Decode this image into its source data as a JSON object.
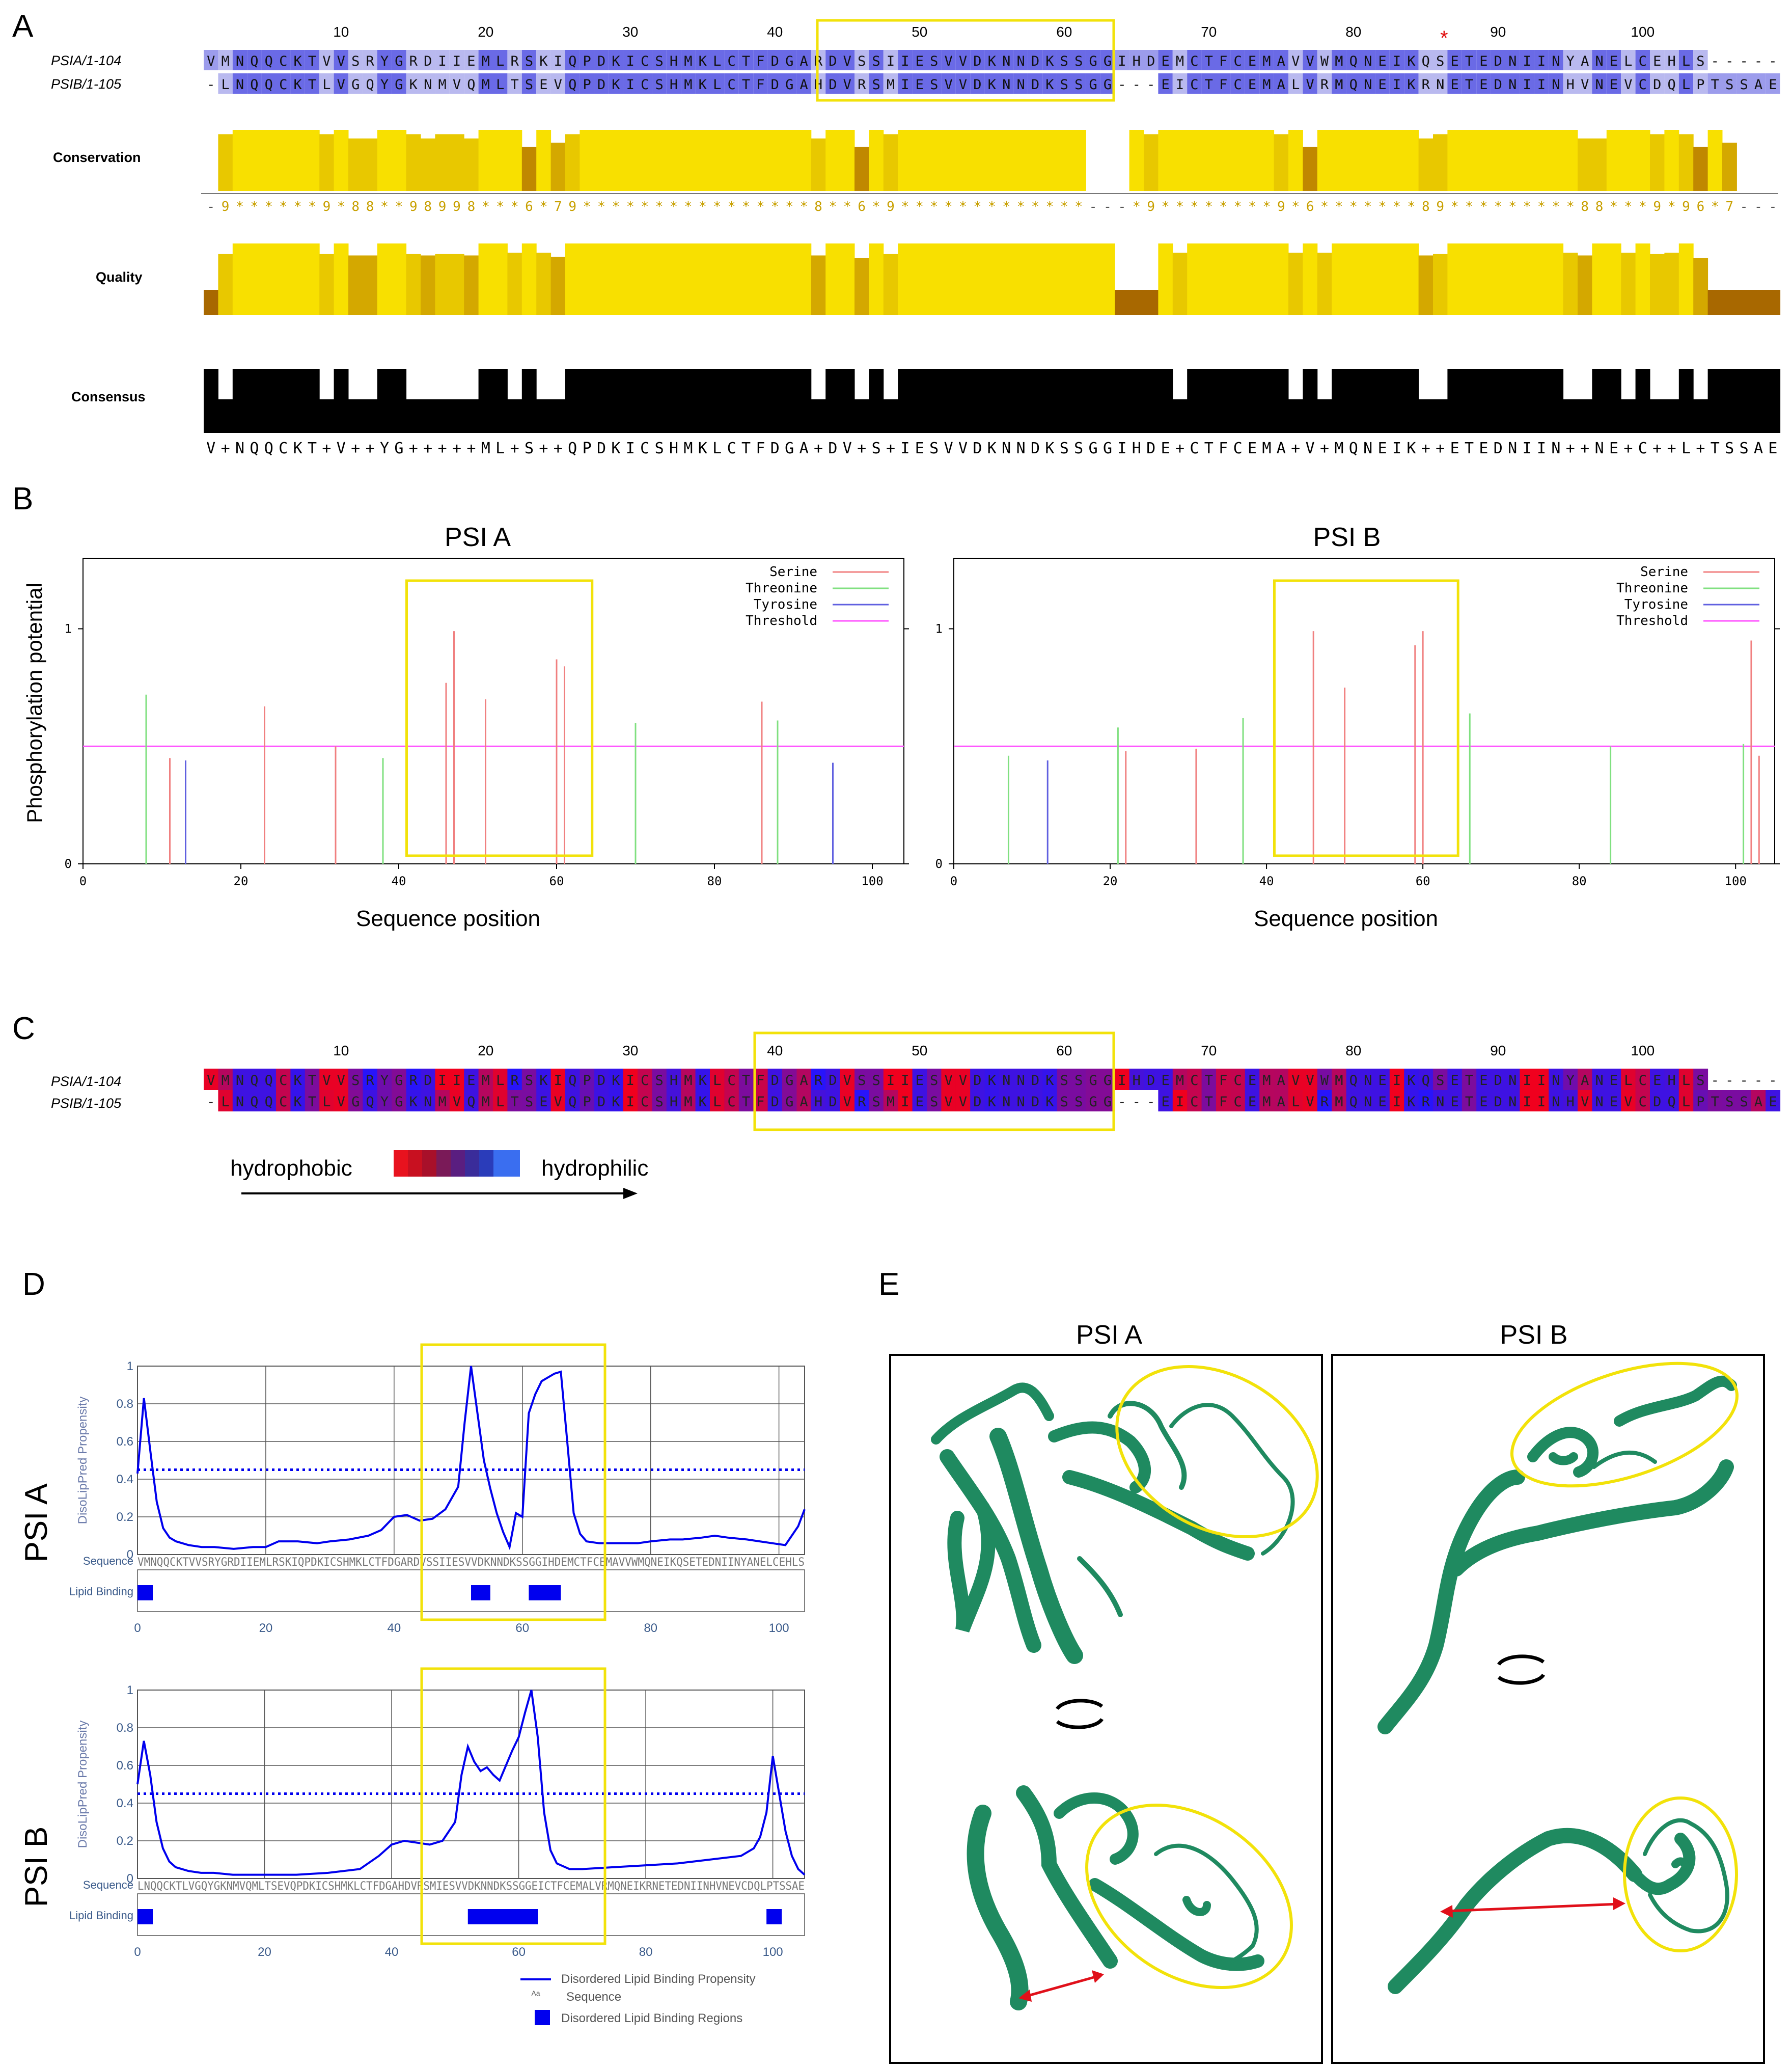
{
  "figure": {
    "panel_labels": {
      "a": "A",
      "b": "B",
      "c": "C",
      "d": "D",
      "e": "E"
    },
    "colors": {
      "yellow_box": "#f2e20a",
      "serine": "#f08080",
      "threonine": "#80e080",
      "tyrosine": "#6060e0",
      "threshold": "#ff55ff",
      "protein": "#1f8a60",
      "lipid": "#0000ee",
      "arrow_red": "#e0101a"
    }
  },
  "panel_a": {
    "ruler": [
      "10",
      "20",
      "30",
      "40",
      "50",
      "60",
      "70",
      "80",
      "90",
      "100"
    ],
    "asterisk": "*",
    "seq_names": [
      "PSIA/1-104",
      "PSIB/1-105"
    ],
    "seq_a": "VMNQQCKTVVSRYGRDIIEMLRSKIQPDKICSHMKLCTFDGARDVSSIIESVVDKNNDKSSGGIHDEMCTFCEMAVVWMQNEIKQSETEDNIINYANELCEHLS-----",
    "seq_b": "-LNQQCKTLVGQYGKNMVQMLTSEVQPDKICSHMKLCTFDGAHDVRSMIESVVDKNNDKSSGG---EICTFCEMALVRMQNEIKRNETEDNIINHVNEVCDQLPTSSAE",
    "track_labels": {
      "conservation": "Conservation",
      "quality": "Quality",
      "consensus": "Consensus"
    },
    "conservation_string": "-9******9*88**98998***6*79****************8**6*9*************---*9********9*6*******89*********88***9*96*7---",
    "consensus_string": "V+NQQCKT+V++YG+++++ML+S++QPDKICSHMKLCTFDGA+DV+S+IESVVDKNNDKSSGGIHDE+CTFCEMA+V+MQNEIK++ETEDNIIN++NE+C++L+TSSAE"
  },
  "panel_b": {
    "y_axis_label": "Phosphorylation potential",
    "legend": [
      "Serine",
      "Threonine",
      "Tyrosine",
      "Threshold"
    ],
    "charts": [
      {
        "title": "PSI A"
      },
      {
        "title": "PSI B"
      }
    ]
  },
  "panel_c": {
    "ruler": [
      "10",
      "20",
      "30",
      "40",
      "50",
      "60",
      "70",
      "80",
      "90",
      "100"
    ],
    "seq_names": [
      "PSIA/1-104",
      "PSIB/1-105"
    ],
    "seq_a": "VMNQQCKTVVSRYGRDIIEMLRSKIQPDKICSHMKLCTFDGARDVSSIIESVVDKNNDKSSGGIHDEMCTFCEMAVVWMQNEIKQSETEDNIINYANELCEHLS-----",
    "seq_b": "-LNQQCKTLVGQYGKNMVQMLTSEVQPDKICSHMKLCTFDGAHDVRSMIESVVDKNNDKSSGG---EICTFCEMALVRMQNEIKRNETEDNIINHVNEVCDQLPTSSAE",
    "scale_left": "hydrophobic",
    "scale_right": "hydrophilic"
  },
  "panel_d": {
    "y_axis_label": "DisoLipPred Propensity",
    "sequence_label": "Sequence",
    "lipid_label": "Lipid Binding",
    "legend": [
      "Disordered Lipid Binding Propensity",
      "Sequence",
      "Disordered Lipid Binding Regions"
    ],
    "legend_aa_glyph": "Aa",
    "charts": [
      {
        "side_label": "PSI A",
        "sequence": "VMNQQCKTVVSRYGRDIIEMLRSKIQPDKICSHMKLCTFDGARDVSSIIESVVDKNNDKSSGGIHDEMCTFCEMAVVWMQNEIKQSETEDNIINYANELCEHLS"
      },
      {
        "side_label": "PSI B",
        "sequence": "LNQQCKTLVGQYGKNMVQMLTSEVQPDKICSHMKLCTFDGAHDVRSMIESVVDKNNDKSSGGEICTFCEMALVRMQNEIKRNETEDNIINHVNEVCDQLPTSSAE"
      }
    ]
  },
  "panel_e": {
    "titles": [
      "PSI A",
      "PSI B"
    ]
  },
  "chart_data": [
    {
      "type": "bar",
      "id": "phospho_psia",
      "title": "PSI A",
      "xlabel": "Sequence position",
      "ylabel": "Phosphorylation potential",
      "xlim": [
        0,
        104
      ],
      "ylim": [
        0,
        1.3
      ],
      "xticks": [
        0,
        20,
        40,
        60,
        80,
        100
      ],
      "yticks": [
        0,
        1
      ],
      "threshold": 0.5,
      "series": [
        {
          "name": "Serine",
          "color": "#f08080",
          "points": [
            [
              11,
              0.45
            ],
            [
              23,
              0.67
            ],
            [
              32,
              0.5
            ],
            [
              46,
              0.77
            ],
            [
              47,
              0.99
            ],
            [
              51,
              0.7
            ],
            [
              60,
              0.87
            ],
            [
              61,
              0.84
            ],
            [
              86,
              0.69
            ]
          ]
        },
        {
          "name": "Threonine",
          "color": "#80e080",
          "points": [
            [
              8,
              0.72
            ],
            [
              38,
              0.45
            ],
            [
              70,
              0.6
            ],
            [
              88,
              0.61
            ]
          ]
        },
        {
          "name": "Tyrosine",
          "color": "#6060e0",
          "points": [
            [
              13,
              0.44
            ],
            [
              95,
              0.43
            ]
          ]
        },
        {
          "name": "Threshold",
          "color": "#ff55ff",
          "points": []
        }
      ]
    },
    {
      "type": "bar",
      "id": "phospho_psib",
      "title": "PSI B",
      "xlabel": "Sequence position",
      "ylabel": "Phosphorylation potential",
      "xlim": [
        0,
        105
      ],
      "ylim": [
        0,
        1.3
      ],
      "xticks": [
        0,
        20,
        40,
        60,
        80,
        100
      ],
      "yticks": [
        0,
        1
      ],
      "threshold": 0.5,
      "series": [
        {
          "name": "Serine",
          "color": "#f08080",
          "points": [
            [
              22,
              0.48
            ],
            [
              31,
              0.49
            ],
            [
              46,
              0.99
            ],
            [
              50,
              0.75
            ],
            [
              59,
              0.93
            ],
            [
              60,
              0.99
            ],
            [
              102,
              0.95
            ],
            [
              103,
              0.46
            ]
          ]
        },
        {
          "name": "Threonine",
          "color": "#80e080",
          "points": [
            [
              7,
              0.46
            ],
            [
              21,
              0.58
            ],
            [
              37,
              0.62
            ],
            [
              66,
              0.64
            ],
            [
              84,
              0.5
            ],
            [
              101,
              0.51
            ]
          ]
        },
        {
          "name": "Tyrosine",
          "color": "#6060e0",
          "points": [
            [
              12,
              0.44
            ]
          ]
        },
        {
          "name": "Threshold",
          "color": "#ff55ff",
          "points": []
        }
      ]
    },
    {
      "type": "line",
      "id": "disolippred_psia",
      "title": "PSI A",
      "ylabel": "DisoLipPred Propensity",
      "xlim": [
        0,
        104
      ],
      "ylim": [
        0,
        1
      ],
      "xticks": [
        0,
        20,
        40,
        60,
        80,
        100
      ],
      "yticks": [
        0,
        0.2,
        0.4,
        0.6,
        0.8,
        1
      ],
      "threshold": 0.45,
      "x": [
        0,
        1,
        2,
        3,
        4,
        5,
        6,
        8,
        10,
        12,
        15,
        18,
        20,
        22,
        25,
        28,
        30,
        33,
        36,
        38,
        40,
        42,
        44,
        46,
        48,
        50,
        51,
        52,
        53,
        54,
        55,
        56,
        57,
        58,
        59,
        60,
        61,
        62,
        63,
        64,
        65,
        66,
        67,
        68,
        69,
        70,
        72,
        75,
        78,
        80,
        83,
        85,
        88,
        90,
        92,
        95,
        97,
        99,
        101,
        102,
        103,
        104
      ],
      "y": [
        0.43,
        0.83,
        0.55,
        0.28,
        0.14,
        0.09,
        0.07,
        0.05,
        0.04,
        0.04,
        0.03,
        0.04,
        0.04,
        0.07,
        0.07,
        0.06,
        0.07,
        0.08,
        0.1,
        0.13,
        0.2,
        0.21,
        0.18,
        0.19,
        0.24,
        0.36,
        0.7,
        1.0,
        0.75,
        0.5,
        0.35,
        0.22,
        0.12,
        0.04,
        0.22,
        0.2,
        0.75,
        0.85,
        0.92,
        0.94,
        0.96,
        0.97,
        0.6,
        0.22,
        0.11,
        0.07,
        0.06,
        0.06,
        0.06,
        0.07,
        0.08,
        0.08,
        0.09,
        0.1,
        0.09,
        0.08,
        0.07,
        0.06,
        0.05,
        0.1,
        0.15,
        0.24
      ],
      "lipid_regions": [
        [
          0,
          2
        ],
        [
          52,
          55
        ],
        [
          61,
          66
        ]
      ]
    },
    {
      "type": "line",
      "id": "disolippred_psib",
      "title": "PSI B",
      "ylabel": "DisoLipPred Propensity",
      "xlim": [
        0,
        105
      ],
      "ylim": [
        0,
        1
      ],
      "xticks": [
        0,
        20,
        40,
        60,
        80,
        100
      ],
      "yticks": [
        0,
        0.2,
        0.4,
        0.6,
        0.8,
        1
      ],
      "threshold": 0.45,
      "x": [
        0,
        1,
        2,
        3,
        4,
        5,
        6,
        8,
        10,
        12,
        15,
        18,
        20,
        25,
        30,
        35,
        38,
        40,
        42,
        44,
        46,
        48,
        50,
        51,
        52,
        53,
        54,
        55,
        56,
        57,
        58,
        59,
        60,
        61,
        62,
        63,
        64,
        65,
        66,
        68,
        70,
        75,
        80,
        85,
        90,
        95,
        97,
        98,
        99,
        100,
        101,
        102,
        103,
        104,
        105
      ],
      "y": [
        0.5,
        0.73,
        0.55,
        0.3,
        0.16,
        0.09,
        0.06,
        0.04,
        0.03,
        0.03,
        0.02,
        0.02,
        0.02,
        0.02,
        0.03,
        0.05,
        0.12,
        0.18,
        0.2,
        0.19,
        0.18,
        0.2,
        0.3,
        0.55,
        0.7,
        0.62,
        0.57,
        0.59,
        0.55,
        0.52,
        0.6,
        0.68,
        0.75,
        0.88,
        1.0,
        0.75,
        0.35,
        0.15,
        0.08,
        0.05,
        0.05,
        0.06,
        0.07,
        0.08,
        0.1,
        0.12,
        0.16,
        0.22,
        0.35,
        0.65,
        0.45,
        0.25,
        0.12,
        0.05,
        0.02
      ],
      "lipid_regions": [
        [
          0,
          2
        ],
        [
          52,
          63
        ],
        [
          99,
          101
        ]
      ]
    }
  ]
}
